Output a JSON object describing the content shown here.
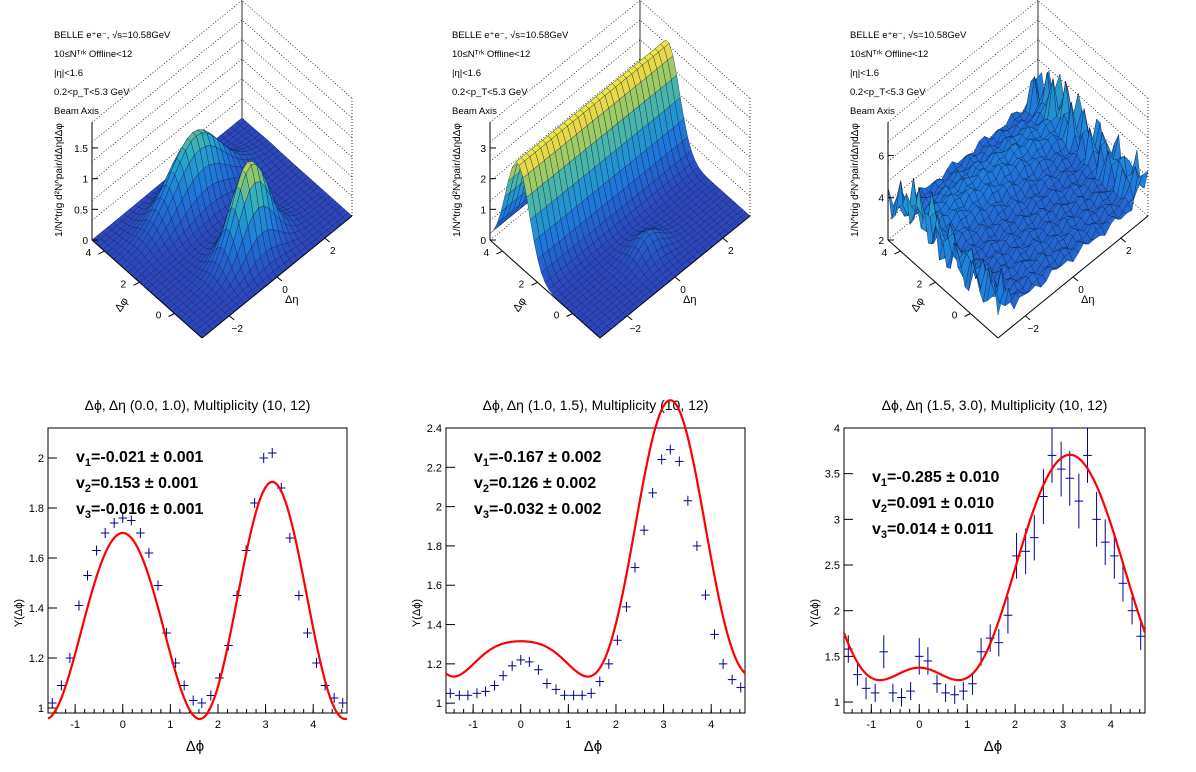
{
  "surface_panels": [
    {
      "info_lines": [
        "BELLE e⁺e⁻, √s=10.58GeV",
        "10≤Nᵀʳᵏ Offline<12",
        "|η|<1.6",
        "0.2<p_T<5.3 GeV",
        "Beam Axis"
      ],
      "zlabel": "1/N^trig d²N^pair/dΔηdΔφ",
      "xlabel": "Δη",
      "ylabel": "Δφ",
      "z_ticks": [
        "0",
        "0.5",
        "1",
        "1.5"
      ],
      "x_ticks": [
        "−2",
        "0",
        "2"
      ],
      "y_ticks": [
        "0",
        "2",
        "4"
      ],
      "shape": "near-away"
    },
    {
      "info_lines": [
        "BELLE e⁺e⁻, √s=10.58GeV",
        "10≤Nᵀʳᵏ Offline<12",
        "|η|<1.6",
        "0.2<p_T<5.3 GeV",
        "Beam Axis"
      ],
      "zlabel": "1/N^trig d²N^pair/dΔηdΔφ",
      "xlabel": "Δη",
      "ylabel": "Δφ",
      "z_ticks": [
        "0",
        "1",
        "2",
        "3"
      ],
      "x_ticks": [
        "−2",
        "0",
        "2"
      ],
      "y_ticks": [
        "0",
        "2",
        "4"
      ],
      "shape": "ridge"
    },
    {
      "info_lines": [
        "BELLE e⁺e⁻, √s=10.58GeV",
        "10≤Nᵀʳᵏ Offline<12",
        "|η|<1.6",
        "0.2<p_T<5.3 GeV",
        "Beam Axis"
      ],
      "zlabel": "1/N^trig d²N^pair/dΔηdΔφ",
      "xlabel": "Δη",
      "ylabel": "Δφ",
      "z_ticks": [
        "2",
        "4",
        "6"
      ],
      "x_ticks": [
        "−2",
        "0",
        "2"
      ],
      "y_ticks": [
        "0",
        "2",
        "4"
      ],
      "shape": "noisy"
    }
  ],
  "colors": {
    "fit": "#ff0000",
    "points": "#000099",
    "axis": "#000000"
  },
  "chart_data": [
    {
      "type": "scatter",
      "title": "Δϕ, Δη (0.0, 1.0), Multiplicity (10, 12)",
      "xlabel": "Δϕ",
      "ylabel": "Y(Δϕ)",
      "xlim": [
        -1.57,
        4.71
      ],
      "ylim": [
        0.98,
        2.12
      ],
      "x_ticks": [
        -1,
        0,
        1,
        2,
        3,
        4
      ],
      "y_ticks": [
        1,
        1.2,
        1.4,
        1.6,
        1.8,
        2
      ],
      "y_tick_labels": [
        "1",
        "1.2",
        "1.4",
        "1.6",
        "1.8",
        "2"
      ],
      "fit": {
        "base": 1.38,
        "v1": -0.021,
        "v2": 0.153,
        "v3": -0.016
      },
      "annotations": [
        {
          "sub": "1",
          "text": "=-0.021 ± 0.001"
        },
        {
          "sub": "2",
          "text": "=0.153 ± 0.001"
        },
        {
          "sub": "3",
          "text": "=-0.016 ± 0.001"
        }
      ],
      "points": {
        "x": [
          -1.48,
          -1.29,
          -1.11,
          -0.92,
          -0.74,
          -0.55,
          -0.37,
          -0.18,
          0.0,
          0.18,
          0.37,
          0.55,
          0.74,
          0.92,
          1.11,
          1.29,
          1.48,
          1.66,
          1.85,
          2.03,
          2.22,
          2.4,
          2.59,
          2.77,
          2.96,
          3.14,
          3.33,
          3.51,
          3.7,
          3.88,
          4.07,
          4.25,
          4.44,
          4.62
        ],
        "y": [
          1.02,
          1.09,
          1.2,
          1.41,
          1.53,
          1.63,
          1.7,
          1.74,
          1.76,
          1.75,
          1.7,
          1.62,
          1.49,
          1.3,
          1.18,
          1.09,
          1.03,
          1.02,
          1.05,
          1.12,
          1.25,
          1.45,
          1.63,
          1.82,
          2.0,
          2.02,
          1.88,
          1.68,
          1.45,
          1.3,
          1.18,
          1.09,
          1.04,
          1.02
        ],
        "yerr": [
          0.006,
          0.006,
          0.006,
          0.006,
          0.006,
          0.006,
          0.006,
          0.006,
          0.006,
          0.006,
          0.006,
          0.006,
          0.006,
          0.006,
          0.006,
          0.006,
          0.006,
          0.006,
          0.006,
          0.006,
          0.006,
          0.006,
          0.006,
          0.006,
          0.006,
          0.006,
          0.006,
          0.006,
          0.006,
          0.006,
          0.006,
          0.006,
          0.006,
          0.006
        ]
      }
    },
    {
      "type": "scatter",
      "title": "Δϕ, Δη (1.0, 1.5), Multiplicity (10, 12)",
      "xlabel": "Δϕ",
      "ylabel": "Y(Δϕ)",
      "xlim": [
        -1.57,
        4.71
      ],
      "ylim": [
        0.95,
        2.4
      ],
      "x_ticks": [
        -1,
        0,
        1,
        2,
        3,
        4
      ],
      "y_ticks": [
        1,
        1.2,
        1.4,
        1.6,
        1.8,
        2,
        2.2,
        2.4
      ],
      "y_tick_labels": [
        "1",
        "1.2",
        "1.4",
        "1.6",
        "1.8",
        "2",
        "2.2",
        "2.4"
      ],
      "fit": {
        "base": 1.54,
        "v1": -0.167,
        "v2": 0.126,
        "v3": -0.032
      },
      "annotations": [
        {
          "sub": "1",
          "text": "=-0.167 ± 0.002"
        },
        {
          "sub": "2",
          "text": "=0.126 ± 0.002"
        },
        {
          "sub": "3",
          "text": "=-0.032 ± 0.002"
        }
      ],
      "points": {
        "x": [
          -1.48,
          -1.29,
          -1.11,
          -0.92,
          -0.74,
          -0.55,
          -0.37,
          -0.18,
          0.0,
          0.18,
          0.37,
          0.55,
          0.74,
          0.92,
          1.11,
          1.29,
          1.48,
          1.66,
          1.85,
          2.03,
          2.22,
          2.4,
          2.59,
          2.77,
          2.96,
          3.14,
          3.33,
          3.51,
          3.7,
          3.88,
          4.07,
          4.25,
          4.44,
          4.62
        ],
        "y": [
          1.05,
          1.04,
          1.04,
          1.05,
          1.06,
          1.09,
          1.14,
          1.19,
          1.22,
          1.21,
          1.17,
          1.1,
          1.07,
          1.04,
          1.04,
          1.04,
          1.05,
          1.11,
          1.2,
          1.32,
          1.49,
          1.69,
          1.88,
          2.07,
          2.24,
          2.29,
          2.23,
          2.03,
          1.8,
          1.55,
          1.35,
          1.2,
          1.12,
          1.08
        ],
        "yerr": [
          0.008,
          0.008,
          0.008,
          0.008,
          0.008,
          0.008,
          0.008,
          0.008,
          0.008,
          0.008,
          0.008,
          0.008,
          0.008,
          0.008,
          0.008,
          0.008,
          0.008,
          0.008,
          0.008,
          0.008,
          0.008,
          0.008,
          0.008,
          0.008,
          0.008,
          0.008,
          0.008,
          0.008,
          0.008,
          0.008,
          0.008,
          0.008,
          0.008,
          0.008
        ]
      }
    },
    {
      "type": "scatter",
      "title": "Δϕ, Δη (1.5, 3.0), Multiplicity (10, 12)",
      "xlabel": "Δϕ",
      "ylabel": "Y(Δϕ)",
      "xlim": [
        -1.57,
        4.71
      ],
      "ylim": [
        0.88,
        4.0
      ],
      "x_ticks": [
        -1,
        0,
        1,
        2,
        3,
        4
      ],
      "y_ticks": [
        1,
        1.5,
        2,
        2.5,
        3,
        3.5,
        4
      ],
      "y_tick_labels": [
        "1",
        "1.5",
        "2",
        "2.5",
        "3",
        "3.5",
        "4"
      ],
      "fit": {
        "base": 2.15,
        "v1": -0.285,
        "v2": 0.091,
        "v3": 0.014
      },
      "annotations": [
        {
          "sub": "1",
          "text": "=-0.285 ± 0.010"
        },
        {
          "sub": "2",
          "text": "=0.091 ± 0.010"
        },
        {
          "sub": "3",
          "text": "=0.014 ± 0.011"
        }
      ],
      "points": {
        "x": [
          -1.48,
          -1.29,
          -1.11,
          -0.92,
          -0.74,
          -0.55,
          -0.37,
          -0.18,
          0.0,
          0.18,
          0.37,
          0.55,
          0.74,
          0.92,
          1.11,
          1.29,
          1.48,
          1.66,
          1.85,
          2.03,
          2.22,
          2.4,
          2.59,
          2.77,
          2.96,
          3.14,
          3.33,
          3.51,
          3.7,
          3.88,
          4.07,
          4.25,
          4.44,
          4.62
        ],
        "y": [
          1.58,
          1.3,
          1.15,
          1.1,
          1.55,
          1.1,
          1.05,
          1.12,
          1.5,
          1.45,
          1.2,
          1.1,
          1.08,
          1.12,
          1.2,
          1.55,
          1.7,
          1.65,
          1.95,
          2.6,
          2.65,
          2.8,
          3.25,
          3.7,
          3.55,
          3.45,
          3.2,
          3.7,
          3.0,
          2.75,
          2.6,
          2.3,
          2.0,
          1.72
        ],
        "yerr": [
          0.15,
          0.12,
          0.12,
          0.1,
          0.18,
          0.1,
          0.1,
          0.1,
          0.2,
          0.15,
          0.1,
          0.1,
          0.1,
          0.1,
          0.12,
          0.15,
          0.15,
          0.15,
          0.2,
          0.25,
          0.25,
          0.25,
          0.3,
          0.3,
          0.3,
          0.3,
          0.3,
          0.3,
          0.3,
          0.25,
          0.25,
          0.2,
          0.15,
          0.15
        ]
      }
    }
  ]
}
